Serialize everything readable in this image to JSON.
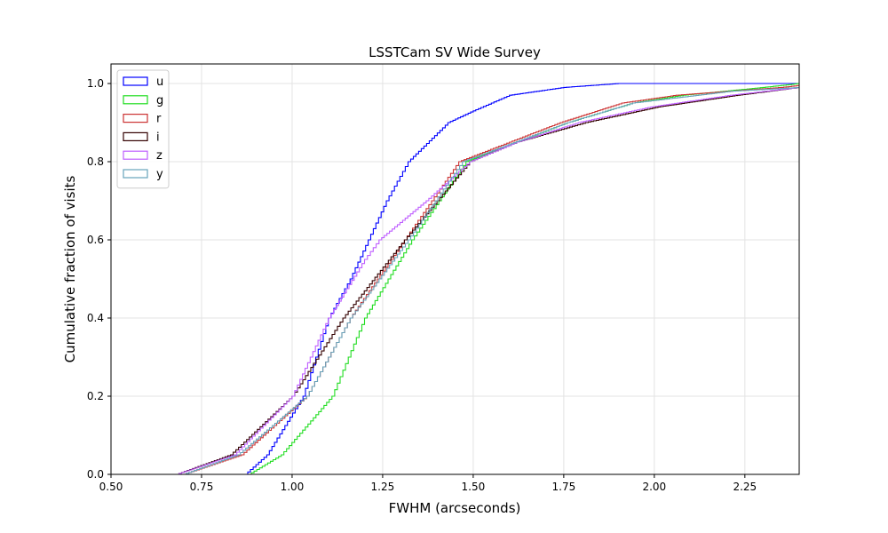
{
  "chart_data": {
    "type": "line",
    "title": "LSSTCam SV Wide Survey",
    "xlabel": "FWHM (arcseconds)",
    "ylabel": "Cumulative fraction of visits",
    "xlim": [
      0.5,
      2.4
    ],
    "ylim": [
      0.0,
      1.05
    ],
    "xticks": [
      0.5,
      0.75,
      1.0,
      1.25,
      1.5,
      1.75,
      2.0,
      2.25
    ],
    "xtick_labels": [
      "0.50",
      "0.75",
      "1.00",
      "1.25",
      "1.50",
      "1.75",
      "2.00",
      "2.25"
    ],
    "yticks": [
      0.0,
      0.2,
      0.4,
      0.6,
      0.8,
      1.0
    ],
    "ytick_labels": [
      "0.0",
      "0.2",
      "0.4",
      "0.6",
      "0.8",
      "1.0"
    ],
    "grid": true,
    "legend_position": "top-left",
    "series": [
      {
        "name": "u",
        "color": "#0000ff",
        "x": [
          0.5,
          0.87,
          0.93,
          1.03,
          1.1,
          1.16,
          1.21,
          1.26,
          1.32,
          1.43,
          1.5,
          1.6,
          1.75,
          1.9,
          2.4
        ],
        "y": [
          0,
          0,
          0.05,
          0.2,
          0.4,
          0.5,
          0.6,
          0.7,
          0.8,
          0.9,
          0.93,
          0.97,
          0.99,
          1.0,
          1.0
        ]
      },
      {
        "name": "g",
        "color": "#22dd22",
        "x": [
          0.5,
          0.88,
          0.97,
          1.11,
          1.2,
          1.33,
          1.48,
          1.76,
          1.94,
          2.08,
          2.3,
          2.4
        ],
        "y": [
          0,
          0,
          0.05,
          0.2,
          0.4,
          0.6,
          0.8,
          0.9,
          0.95,
          0.97,
          0.99,
          1.0
        ]
      },
      {
        "name": "r",
        "color": "#cc3333",
        "x": [
          0.5,
          0.7,
          0.86,
          1.04,
          1.16,
          1.31,
          1.46,
          1.74,
          1.91,
          2.06,
          2.35,
          2.4
        ],
        "y": [
          0,
          0,
          0.05,
          0.2,
          0.4,
          0.6,
          0.8,
          0.9,
          0.95,
          0.97,
          0.99,
          0.995
        ]
      },
      {
        "name": "i",
        "color": "#330000",
        "x": [
          0.5,
          0.68,
          0.83,
          1.0,
          1.14,
          1.31,
          1.49,
          1.62,
          1.81,
          2.01,
          2.23,
          2.4
        ],
        "y": [
          0,
          0,
          0.05,
          0.2,
          0.4,
          0.6,
          0.8,
          0.85,
          0.9,
          0.94,
          0.97,
          0.99
        ]
      },
      {
        "name": "z",
        "color": "#bf5fff",
        "x": [
          0.5,
          0.68,
          0.84,
          1.0,
          1.1,
          1.2,
          1.24,
          1.37,
          1.49,
          1.62,
          1.79,
          1.99,
          2.21,
          2.4
        ],
        "y": [
          0,
          0,
          0.05,
          0.2,
          0.4,
          0.55,
          0.6,
          0.7,
          0.8,
          0.85,
          0.9,
          0.94,
          0.97,
          0.99
        ]
      },
      {
        "name": "y",
        "color": "#66a3bb",
        "x": [
          0.5,
          0.7,
          0.85,
          1.04,
          1.16,
          1.32,
          1.47,
          1.76,
          1.94,
          2.21,
          2.4
        ],
        "y": [
          0,
          0,
          0.05,
          0.2,
          0.4,
          0.6,
          0.8,
          0.9,
          0.95,
          0.98,
          0.99
        ]
      }
    ]
  }
}
